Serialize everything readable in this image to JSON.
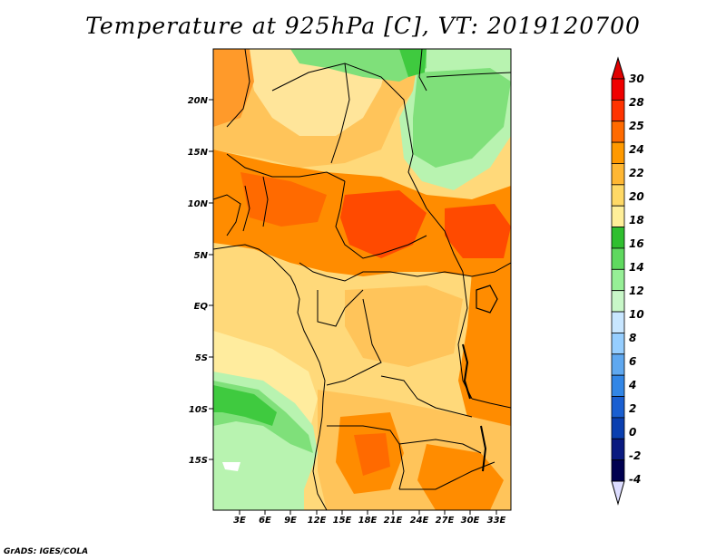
{
  "title": "Temperature at 925hPa [C], VT: 2019120700",
  "credit": "GrADS: IGES/COLA",
  "lat_labels": [
    "20N",
    "15N",
    "10N",
    "5N",
    "EQ",
    "5S",
    "10S",
    "15S"
  ],
  "lon_labels": [
    "3E",
    "6E",
    "9E",
    "12E",
    "15E",
    "18E",
    "21E",
    "24E",
    "27E",
    "30E",
    "33E"
  ],
  "colorbar": {
    "labels": [
      "30",
      "28",
      "25",
      "24",
      "22",
      "20",
      "18",
      "16",
      "14",
      "12",
      "10",
      "8",
      "6",
      "4",
      "2",
      "0",
      "-2",
      "-4"
    ],
    "colors": [
      "#f00000",
      "#ff3300",
      "#ff6a00",
      "#ff9900",
      "#ffb733",
      "#ffd966",
      "#ffef99",
      "#2fbf2f",
      "#5fd95f",
      "#96ef96",
      "#c8f7c8",
      "#c8e6ff",
      "#96ceff",
      "#5fa8f0",
      "#3286e6",
      "#1a5fd1",
      "#0a3fb0",
      "#0a1a80",
      "#000050"
    ],
    "top_triangle_color": "#e00000",
    "bottom_triangle_color": "#ddddff"
  },
  "map_colors": {
    "hot": "#ff4a00",
    "warm": "#ff8c00",
    "mild": "#ffb44a",
    "cool": "#ffd97a",
    "cooler": "#ffec9e",
    "green_light": "#b8f3b0",
    "green_mid": "#7fe07a",
    "green_dark": "#3fca3f",
    "lake": "#ffffff"
  }
}
